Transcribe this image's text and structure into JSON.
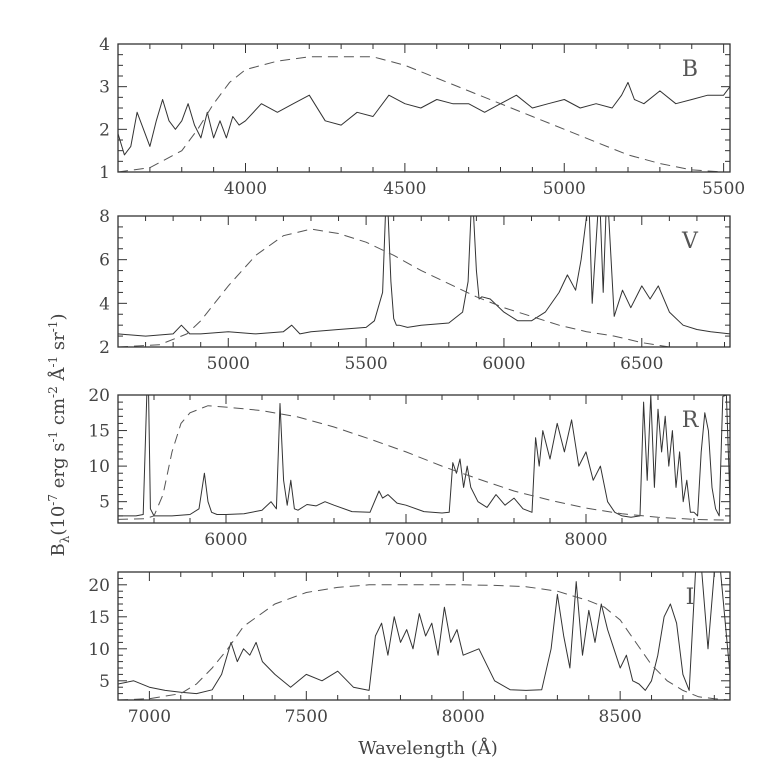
{
  "figure": {
    "xlabel": "Wavelength (Å)",
    "ylabel_html": "B<tspan font-size='12' dy='5'>λ</tspan><tspan dy='-5'>(10</tspan><tspan font-size='12' dy='-7'>-7</tspan><tspan dy='7'> erg s</tspan><tspan font-size='12' dy='-7'>-1</tspan><tspan dy='7'> cm</tspan><tspan font-size='12' dy='-7'>-2</tspan><tspan dy='7'> Å</tspan><tspan font-size='12' dy='-7'>-1</tspan><tspan dy='7'> sr</tspan><tspan font-size='12' dy='-7'>-1</tspan><tspan dy='7'>)</tspan>",
    "ylabel": "Bλ(10-7 erg s-1 cm-2 Å-1 sr-1)"
  },
  "chart_data": [
    {
      "type": "line",
      "panel_label": "B",
      "xlim": [
        3600,
        5520
      ],
      "ylim": [
        1,
        4
      ],
      "xticks": [
        4000,
        4500,
        5000,
        5500
      ],
      "yticks": [
        1,
        2,
        3,
        4
      ],
      "series": [
        {
          "style": "solid",
          "x": [
            3600,
            3620,
            3640,
            3660,
            3680,
            3700,
            3720,
            3740,
            3760,
            3780,
            3800,
            3820,
            3840,
            3860,
            3880,
            3900,
            3920,
            3940,
            3960,
            3980,
            4000,
            4050,
            4100,
            4150,
            4200,
            4250,
            4300,
            4350,
            4400,
            4450,
            4500,
            4550,
            4600,
            4650,
            4700,
            4750,
            4800,
            4850,
            4900,
            4950,
            5000,
            5050,
            5100,
            5150,
            5180,
            5200,
            5220,
            5250,
            5300,
            5350,
            5400,
            5450,
            5500,
            5520
          ],
          "y": [
            1.9,
            1.4,
            1.6,
            2.4,
            2.0,
            1.6,
            2.2,
            2.7,
            2.2,
            2.0,
            2.2,
            2.6,
            2.1,
            1.8,
            2.4,
            1.8,
            2.2,
            1.8,
            2.3,
            2.1,
            2.2,
            2.6,
            2.4,
            2.6,
            2.8,
            2.2,
            2.1,
            2.4,
            2.3,
            2.8,
            2.6,
            2.5,
            2.7,
            2.6,
            2.6,
            2.4,
            2.6,
            2.8,
            2.5,
            2.6,
            2.7,
            2.5,
            2.6,
            2.5,
            2.8,
            3.1,
            2.7,
            2.6,
            2.9,
            2.6,
            2.7,
            2.8,
            2.8,
            3.0
          ]
        },
        {
          "style": "dashed",
          "x": [
            3600,
            3700,
            3800,
            3850,
            3900,
            3950,
            4000,
            4100,
            4200,
            4300,
            4400,
            4500,
            4600,
            4700,
            4800,
            4900,
            5000,
            5100,
            5200,
            5300,
            5400,
            5500
          ],
          "y": [
            1.0,
            1.1,
            1.5,
            2.0,
            2.6,
            3.1,
            3.4,
            3.6,
            3.7,
            3.7,
            3.7,
            3.5,
            3.2,
            2.9,
            2.6,
            2.3,
            2.0,
            1.7,
            1.4,
            1.2,
            1.05,
            1.0
          ]
        }
      ]
    },
    {
      "type": "line",
      "panel_label": "V",
      "xlim": [
        4600,
        6820
      ],
      "ylim": [
        2,
        8
      ],
      "xticks": [
        5000,
        5500,
        6000,
        6500
      ],
      "yticks": [
        2,
        4,
        6,
        8
      ],
      "series": [
        {
          "style": "solid",
          "x": [
            4600,
            4700,
            4800,
            4830,
            4860,
            4900,
            5000,
            5100,
            5200,
            5230,
            5260,
            5300,
            5400,
            5500,
            5530,
            5560,
            5570,
            5580,
            5590,
            5600,
            5610,
            5620,
            5650,
            5700,
            5800,
            5850,
            5870,
            5880,
            5890,
            5900,
            5910,
            5920,
            5950,
            6000,
            6050,
            6100,
            6150,
            6200,
            6230,
            6260,
            6280,
            6300,
            6310,
            6320,
            6340,
            6350,
            6360,
            6370,
            6380,
            6400,
            6430,
            6460,
            6500,
            6530,
            6560,
            6600,
            6650,
            6700,
            6750,
            6820
          ],
          "y": [
            2.6,
            2.5,
            2.6,
            3.0,
            2.6,
            2.6,
            2.7,
            2.6,
            2.7,
            3.0,
            2.6,
            2.7,
            2.8,
            2.9,
            3.2,
            4.5,
            8.0,
            8.0,
            5.0,
            3.3,
            3.0,
            3.0,
            2.9,
            3.0,
            3.1,
            3.6,
            5.0,
            8.0,
            8.0,
            5.5,
            4.2,
            4.3,
            4.2,
            3.6,
            3.2,
            3.2,
            3.6,
            4.5,
            5.3,
            4.6,
            6.0,
            8.0,
            8.0,
            4.0,
            8.0,
            8.0,
            4.5,
            8.0,
            8.0,
            3.4,
            4.6,
            3.8,
            4.8,
            4.2,
            4.8,
            3.6,
            3.0,
            2.8,
            2.7,
            2.6
          ]
        },
        {
          "style": "dashed",
          "x": [
            4600,
            4750,
            4850,
            4900,
            5000,
            5100,
            5200,
            5300,
            5400,
            5500,
            5600,
            5700,
            5800,
            5900,
            6000,
            6100,
            6200,
            6300,
            6400,
            6500,
            6600
          ],
          "y": [
            2.0,
            2.1,
            2.6,
            3.2,
            4.8,
            6.2,
            7.1,
            7.4,
            7.2,
            6.8,
            6.2,
            5.5,
            4.9,
            4.3,
            3.8,
            3.4,
            3.0,
            2.7,
            2.5,
            2.2,
            2.0
          ]
        }
      ]
    },
    {
      "type": "line",
      "panel_label": "R",
      "xlim": [
        5400,
        8800
      ],
      "ylim": [
        2,
        20
      ],
      "xticks": [
        6000,
        7000,
        8000
      ],
      "yticks": [
        5,
        10,
        15,
        20
      ],
      "series": [
        {
          "style": "solid",
          "x": [
            5400,
            5500,
            5540,
            5560,
            5570,
            5580,
            5600,
            5700,
            5800,
            5850,
            5880,
            5900,
            5920,
            5950,
            6000,
            6100,
            6200,
            6250,
            6280,
            6300,
            6320,
            6340,
            6360,
            6380,
            6400,
            6450,
            6500,
            6550,
            6600,
            6700,
            6800,
            6850,
            6870,
            6900,
            6950,
            7000,
            7100,
            7200,
            7240,
            7260,
            7280,
            7300,
            7320,
            7340,
            7360,
            7400,
            7450,
            7500,
            7550,
            7600,
            7650,
            7700,
            7720,
            7740,
            7760,
            7800,
            7840,
            7880,
            7920,
            7960,
            8000,
            8040,
            8080,
            8120,
            8160,
            8200,
            8250,
            8300,
            8320,
            8340,
            8360,
            8380,
            8400,
            8420,
            8440,
            8460,
            8480,
            8500,
            8520,
            8540,
            8560,
            8580,
            8600,
            8620,
            8640,
            8660,
            8680,
            8700,
            8720,
            8740,
            8760,
            8780,
            8800
          ],
          "y": [
            3.0,
            3.0,
            3.2,
            20.0,
            20.0,
            4.0,
            3.0,
            3.0,
            3.2,
            4.0,
            9.0,
            5.0,
            3.5,
            3.2,
            3.2,
            3.3,
            3.8,
            5.0,
            4.0,
            18.8,
            8.0,
            4.5,
            8.0,
            4.0,
            3.8,
            4.6,
            4.4,
            5.0,
            4.5,
            3.6,
            3.5,
            6.5,
            5.5,
            6.0,
            4.8,
            4.5,
            3.6,
            3.4,
            3.5,
            10.5,
            9.0,
            11.0,
            7.0,
            10.0,
            7.0,
            5.0,
            4.2,
            6.0,
            4.5,
            5.5,
            4.0,
            3.5,
            14.0,
            10.0,
            15.0,
            11.0,
            16.0,
            12.0,
            16.5,
            10.0,
            12.0,
            8.0,
            10.0,
            5.0,
            3.5,
            3.0,
            2.8,
            3.0,
            19.0,
            8.0,
            20.0,
            7.0,
            18.0,
            12.0,
            17.0,
            10.0,
            15.0,
            7.0,
            12.0,
            5.0,
            8.0,
            3.5,
            3.5,
            3.0,
            12.0,
            17.5,
            15.0,
            7.0,
            4.0,
            3.0,
            19.8,
            20.0,
            5.0
          ],
          "clip": true
        },
        {
          "style": "dashed",
          "x": [
            5400,
            5550,
            5600,
            5650,
            5700,
            5750,
            5800,
            5900,
            6000,
            6200,
            6400,
            6600,
            6800,
            7000,
            7200,
            7400,
            7600,
            7800,
            8000,
            8200,
            8400,
            8600,
            8800
          ],
          "y": [
            2.5,
            2.6,
            3.0,
            6.0,
            12.0,
            16.0,
            17.5,
            18.5,
            18.3,
            17.8,
            16.9,
            15.5,
            13.8,
            12.0,
            10.0,
            8.2,
            6.5,
            5.2,
            4.1,
            3.3,
            2.8,
            2.5,
            2.4
          ]
        }
      ]
    },
    {
      "type": "line",
      "panel_label": "I",
      "xlim": [
        6900,
        8850
      ],
      "ylim": [
        2,
        22
      ],
      "xticks": [
        7000,
        7500,
        8000,
        8500
      ],
      "yticks": [
        5,
        10,
        15,
        20
      ],
      "series": [
        {
          "style": "solid",
          "x": [
            6900,
            6950,
            7000,
            7050,
            7100,
            7150,
            7200,
            7230,
            7260,
            7280,
            7300,
            7320,
            7340,
            7360,
            7400,
            7450,
            7500,
            7550,
            7600,
            7650,
            7700,
            7720,
            7740,
            7760,
            7780,
            7800,
            7820,
            7840,
            7860,
            7880,
            7900,
            7920,
            7940,
            7960,
            7980,
            8000,
            8050,
            8100,
            8150,
            8200,
            8250,
            8280,
            8300,
            8320,
            8340,
            8360,
            8380,
            8400,
            8420,
            8440,
            8460,
            8480,
            8500,
            8520,
            8540,
            8560,
            8580,
            8600,
            8620,
            8640,
            8660,
            8680,
            8700,
            8720,
            8740,
            8760,
            8780,
            8800,
            8820,
            8850
          ],
          "y": [
            4.5,
            5.0,
            4.0,
            3.5,
            3.2,
            3.0,
            3.6,
            6.0,
            11.0,
            8.0,
            10.0,
            9.0,
            11.0,
            8.0,
            6.0,
            4.0,
            6.0,
            5.0,
            6.5,
            4.0,
            3.5,
            12.0,
            14.0,
            9.0,
            15.0,
            11.0,
            13.0,
            10.0,
            15.5,
            12.0,
            14.0,
            9.0,
            16.5,
            11.0,
            13.0,
            9.0,
            10.0,
            5.0,
            3.6,
            3.5,
            3.6,
            10.0,
            18.5,
            12.0,
            7.0,
            20.5,
            9.0,
            16.0,
            11.0,
            17.0,
            13.0,
            10.0,
            7.0,
            9.0,
            5.0,
            4.5,
            3.5,
            5.0,
            9.0,
            15.0,
            17.0,
            14.0,
            6.0,
            3.5,
            22.0,
            22.0,
            10.0,
            22.0,
            22.0,
            6.0
          ],
          "clip": true
        },
        {
          "style": "dashed",
          "x": [
            6900,
            7000,
            7100,
            7150,
            7200,
            7250,
            7300,
            7400,
            7500,
            7600,
            7700,
            7800,
            7900,
            8000,
            8100,
            8200,
            8300,
            8400,
            8450,
            8500,
            8550,
            8600,
            8650,
            8700,
            8750,
            8800,
            8850
          ],
          "y": [
            2.0,
            2.2,
            3.0,
            4.5,
            7.0,
            10.0,
            13.5,
            17.0,
            18.8,
            19.6,
            20.0,
            20.0,
            20.0,
            20.0,
            19.9,
            19.7,
            19.0,
            17.5,
            16.5,
            14.5,
            11.0,
            7.5,
            5.0,
            3.5,
            2.5,
            2.2,
            2.0
          ]
        }
      ]
    }
  ]
}
